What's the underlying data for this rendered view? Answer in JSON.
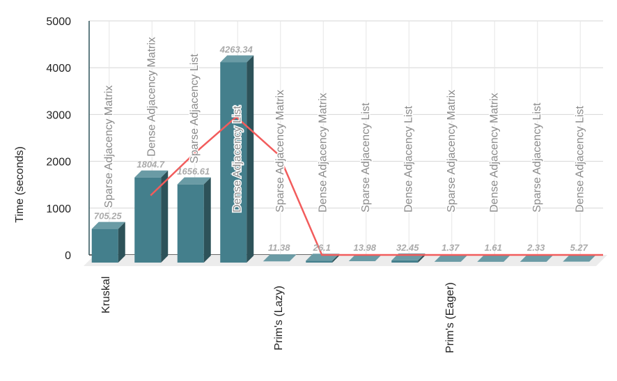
{
  "chart_data": {
    "type": "bar",
    "ylabel": "Time (seconds)",
    "xlabel": "",
    "ylim": [
      0,
      5000
    ],
    "yticks": [
      "0",
      "1000",
      "2000",
      "3000",
      "4000",
      "5000"
    ],
    "grid": true,
    "three_d": true,
    "groups": [
      "Kruskal",
      "Prim's (Lazy)",
      "Prim's (Eager)"
    ],
    "categories": [
      "Sparse Adjacency Matrix",
      "Dense Adjacency Matrix",
      "Sparse Adjacency List",
      "Dense Adjacency List",
      "Sparse Adjacency Matrix",
      "Dense Adjacency Matrix",
      "Sparse Adjacency List",
      "Dense Adjacency List",
      "Sparse Adjacency Matrix",
      "Dense Adjacency Matrix",
      "Sparse Adjacency List",
      "Dense Adjacency List"
    ],
    "values": [
      705.25,
      1804.7,
      1656.61,
      4263.34,
      11.38,
      26.1,
      13.98,
      32.45,
      1.37,
      1.61,
      2.33,
      5.27
    ],
    "value_labels": [
      "705.25",
      "1804.7",
      "1656.61",
      "4263.34",
      "11.38",
      "26.1",
      "13.98",
      "32.45",
      "1.37",
      "1.61",
      "2.33",
      "5.27"
    ],
    "line_series": [
      null,
      1270,
      2150,
      2950,
      2130,
      0,
      0,
      0,
      0,
      0,
      0,
      0
    ],
    "colors": {
      "bar": "#447f8c",
      "bar_top": "#6a9ba5",
      "bar_side": "#2d5259",
      "line": "#f25c5c",
      "label": "#aaaaaa",
      "category_label": "#8a8a8a"
    }
  }
}
